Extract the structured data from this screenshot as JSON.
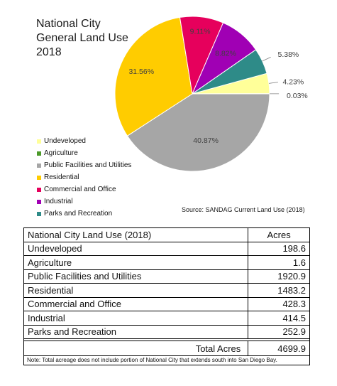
{
  "title_lines": [
    "National City",
    "General Land  Use",
    "2018"
  ],
  "source": "Source: SANDAG Current Land Use (2018)",
  "chart_data": {
    "type": "pie",
    "title": "National City General Land Use 2018",
    "legend_position": "bottom-left",
    "slices": [
      {
        "name": "Undeveloped",
        "value": 4.23,
        "label": "4.23%",
        "color": "#ffff99"
      },
      {
        "name": "Agriculture",
        "value": 0.03,
        "label": "0.03%",
        "color": "#4c9a2a"
      },
      {
        "name": "Public Facilities and Utilities",
        "value": 40.87,
        "label": "40.87%",
        "color": "#a6a6a6"
      },
      {
        "name": "Residential",
        "value": 31.56,
        "label": "31.56%",
        "color": "#ffcc00"
      },
      {
        "name": "Commercial and Office",
        "value": 9.11,
        "label": "9.11%",
        "color": "#e6005c"
      },
      {
        "name": "Industrial",
        "value": 8.82,
        "label": "8.82%",
        "color": "#a000b4"
      },
      {
        "name": "Parks and Recreation",
        "value": 5.38,
        "label": "5.38%",
        "color": "#2e8b88"
      }
    ]
  },
  "table": {
    "header": {
      "category": "National City Land Use (2018)",
      "acres": "Acres"
    },
    "rows": [
      {
        "category": "Undeveloped",
        "acres": "198.6"
      },
      {
        "category": "Agriculture",
        "acres": "1.6"
      },
      {
        "category": "Public Facilities and Utilities",
        "acres": "1920.9"
      },
      {
        "category": "Residential",
        "acres": "1483.2"
      },
      {
        "category": "Commercial and Office",
        "acres": "428.3"
      },
      {
        "category": "Industrial",
        "acres": "414.5"
      },
      {
        "category": "Parks and Recreation",
        "acres": "252.9"
      }
    ],
    "total": {
      "label": "Total Acres",
      "acres": "4699.9"
    }
  },
  "note": "Note: Total acreage does not include portion of National City that extends south into San Diego Bay."
}
